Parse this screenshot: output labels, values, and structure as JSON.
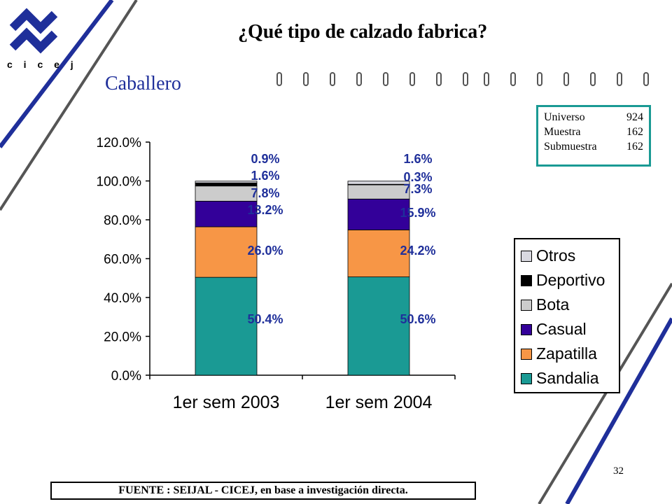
{
  "logo": {
    "text": "c i c e j"
  },
  "slide": {
    "title": "¿Qué tipo de calzado fabrica?",
    "subtitle": "Caballero",
    "page_number": "32",
    "footer": "FUENTE :  SEIJAL - CICEJ,  en base a investigación directa."
  },
  "info_box": {
    "rows": [
      {
        "label": "Universo",
        "value": "924"
      },
      {
        "label": "Muestra",
        "value": "162"
      },
      {
        "label": "Submuestra",
        "value": "162"
      }
    ]
  },
  "colors": {
    "accent_blue": "#1f2f9a",
    "teal_border": "#1a9a94",
    "deco_gray": "#555555"
  },
  "chart_data": {
    "type": "bar",
    "stacked": true,
    "categories": [
      "1er sem 2003",
      "1er sem 2004"
    ],
    "y_ticks": [
      "0.0%",
      "20.0%",
      "40.0%",
      "60.0%",
      "80.0%",
      "100.0%",
      "120.0%"
    ],
    "ylim": [
      0,
      120
    ],
    "series": [
      {
        "name": "Sandalia",
        "color": "#1a9a94",
        "values": [
          50.4,
          50.6
        ],
        "labels": [
          "50.4%",
          "50.6%"
        ]
      },
      {
        "name": "Zapatilla",
        "color": "#f79646",
        "values": [
          26.0,
          24.2
        ],
        "labels": [
          "26.0%",
          "24.2%"
        ]
      },
      {
        "name": "Casual",
        "color": "#330099",
        "values": [
          13.2,
          15.9
        ],
        "labels": [
          "13.2%",
          "15.9%"
        ]
      },
      {
        "name": "Bota",
        "color": "#cccccc",
        "values": [
          7.8,
          7.3
        ],
        "labels": [
          "7.8%",
          "7.3%"
        ]
      },
      {
        "name": "Deportivo",
        "color": "#000000",
        "values": [
          1.6,
          0.3
        ],
        "labels": [
          "1.6%",
          "0.3%"
        ]
      },
      {
        "name": "Otros",
        "color": "#d9d9e0",
        "values": [
          0.9,
          1.6
        ],
        "labels": [
          "0.9%",
          "1.6%"
        ]
      }
    ],
    "legend_order": [
      "Otros",
      "Deportivo",
      "Bota",
      "Casual",
      "Zapatilla",
      "Sandalia"
    ],
    "legend_position": "right"
  }
}
